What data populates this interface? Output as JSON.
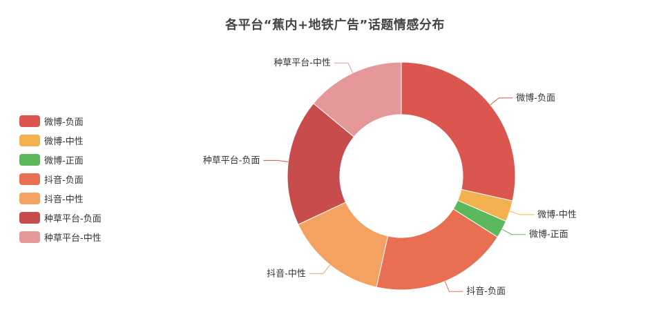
{
  "chart_data": {
    "type": "pie",
    "variant": "donut",
    "title": "各平台“蕉内+地铁广告”话题情感分布",
    "legend_position": "left",
    "slices": [
      {
        "name": "微博-负面",
        "value": 28.5,
        "color": "#dc5650"
      },
      {
        "name": "微博-中性",
        "value": 3.0,
        "color": "#f2b04e"
      },
      {
        "name": "微博-正面",
        "value": 2.5,
        "color": "#5cb85c"
      },
      {
        "name": "抖音-负面",
        "value": 19.5,
        "color": "#e86f52"
      },
      {
        "name": "抖音-中性",
        "value": 14.5,
        "color": "#f4a261"
      },
      {
        "name": "种草平台-负面",
        "value": 18.0,
        "color": "#c94c4c"
      },
      {
        "name": "种草平台-中性",
        "value": 14.0,
        "color": "#e6979a"
      }
    ]
  }
}
